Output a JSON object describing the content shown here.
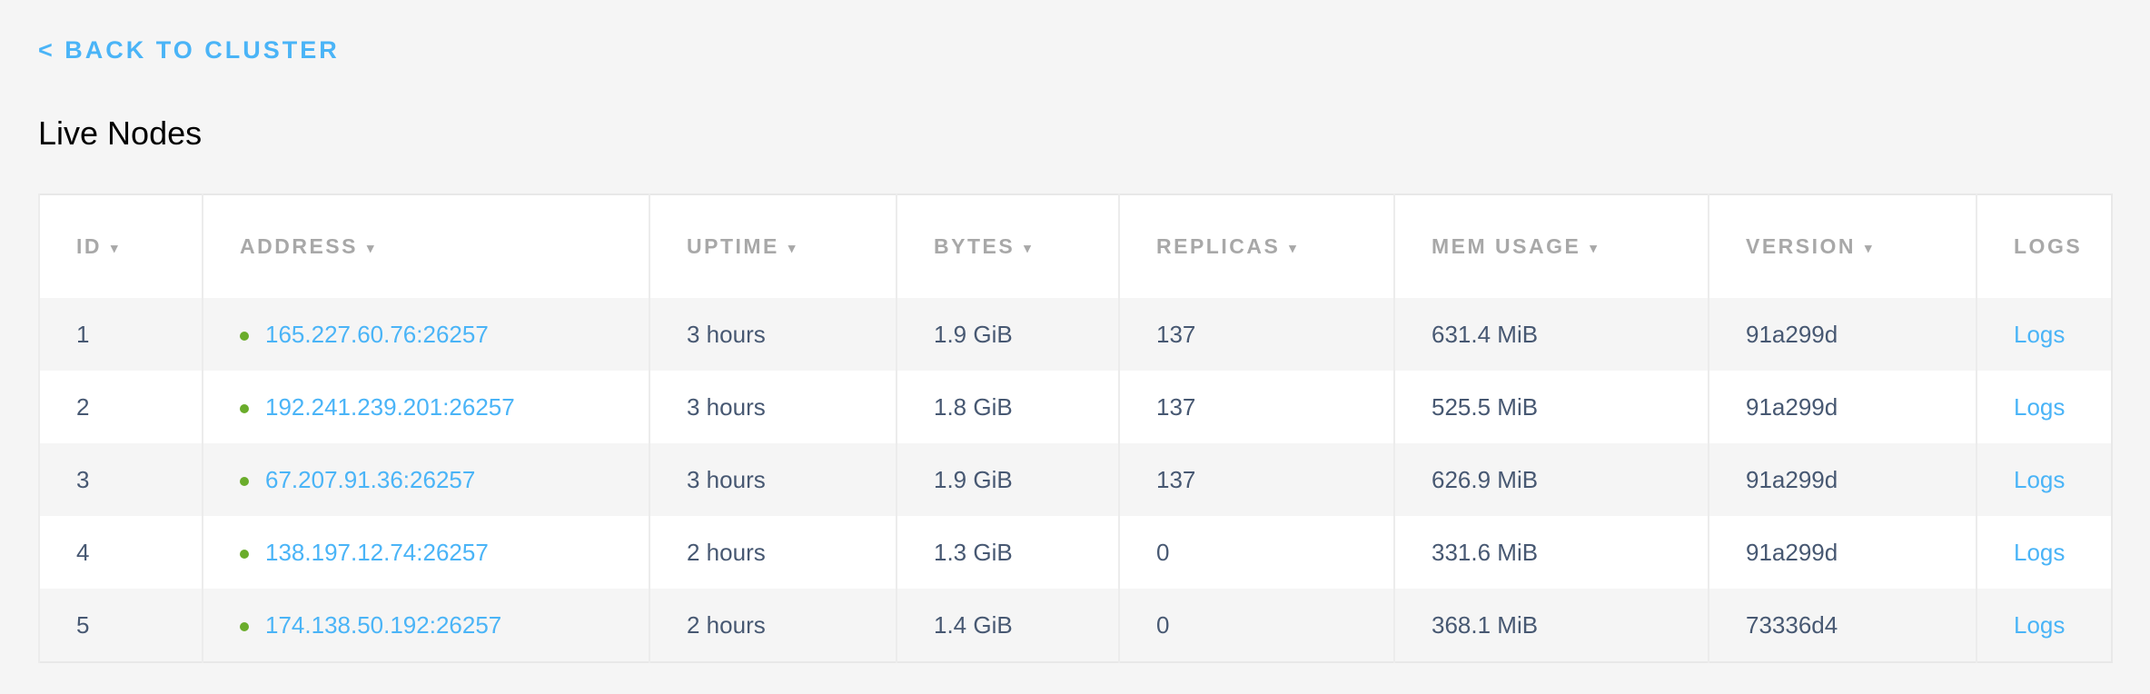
{
  "back_link": {
    "label": "< BACK TO CLUSTER",
    "color": "#4ab4f7"
  },
  "page_title": "Live Nodes",
  "status_color": "#6aac2b",
  "sort_icon": "▾",
  "columns": [
    {
      "label": "ID",
      "sortable": true
    },
    {
      "label": "ADDRESS",
      "sortable": true
    },
    {
      "label": "UPTIME",
      "sortable": true
    },
    {
      "label": "BYTES",
      "sortable": true
    },
    {
      "label": "REPLICAS",
      "sortable": true
    },
    {
      "label": "MEM USAGE",
      "sortable": true
    },
    {
      "label": "VERSION",
      "sortable": true
    },
    {
      "label": "LOGS",
      "sortable": false
    }
  ],
  "rows": [
    {
      "id": "1",
      "address": "165.227.60.76:26257",
      "uptime": "3 hours",
      "bytes": "1.9 GiB",
      "replicas": "137",
      "mem": "631.4 MiB",
      "version": "91a299d",
      "logs": "Logs"
    },
    {
      "id": "2",
      "address": "192.241.239.201:26257",
      "uptime": "3 hours",
      "bytes": "1.8 GiB",
      "replicas": "137",
      "mem": "525.5 MiB",
      "version": "91a299d",
      "logs": "Logs"
    },
    {
      "id": "3",
      "address": "67.207.91.36:26257",
      "uptime": "3 hours",
      "bytes": "1.9 GiB",
      "replicas": "137",
      "mem": "626.9 MiB",
      "version": "91a299d",
      "logs": "Logs"
    },
    {
      "id": "4",
      "address": "138.197.12.74:26257",
      "uptime": "2 hours",
      "bytes": "1.3 GiB",
      "replicas": "0",
      "mem": "331.6 MiB",
      "version": "91a299d",
      "logs": "Logs"
    },
    {
      "id": "5",
      "address": "174.138.50.192:26257",
      "uptime": "2 hours",
      "bytes": "1.4 GiB",
      "replicas": "0",
      "mem": "368.1 MiB",
      "version": "73336d4",
      "logs": "Logs"
    }
  ]
}
